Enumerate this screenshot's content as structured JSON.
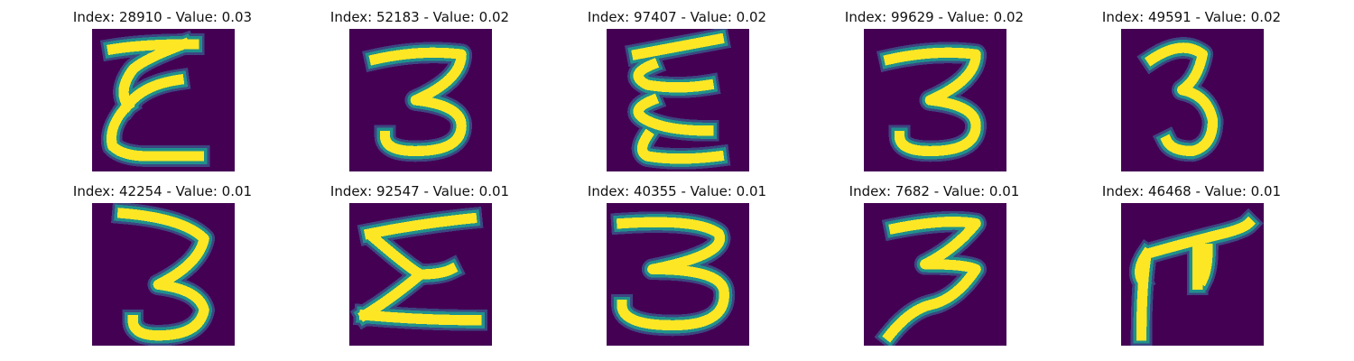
{
  "colors": {
    "background": "#440154",
    "low": "#3b528b",
    "mid": "#21918c",
    "high": "#fde725"
  },
  "panels": [
    {
      "title": "Index: 28910 - Value: 0.03",
      "glyph": "3",
      "style": "E-like"
    },
    {
      "title": "Index: 52183 - Value: 0.02",
      "glyph": "3",
      "style": "upright"
    },
    {
      "title": "Index: 97407 - Value: 0.02",
      "glyph": "3",
      "style": "zigzag"
    },
    {
      "title": "Index: 99629 - Value: 0.02",
      "glyph": "3",
      "style": "upright"
    },
    {
      "title": "Index: 49591 - Value: 0.02",
      "glyph": "3",
      "style": "narrow"
    },
    {
      "title": "Index: 42254 - Value: 0.01",
      "glyph": "3",
      "style": "tall"
    },
    {
      "title": "Index: 92547 - Value: 0.01",
      "glyph": "3",
      "style": "sigma"
    },
    {
      "title": "Index: 40355 - Value: 0.01",
      "glyph": "3",
      "style": "wide"
    },
    {
      "title": "Index: 7682 - Value: 0.01",
      "glyph": "3",
      "style": "slanted"
    },
    {
      "title": "Index: 46468 - Value: 0.01",
      "glyph": "3",
      "style": "rotated"
    }
  ]
}
